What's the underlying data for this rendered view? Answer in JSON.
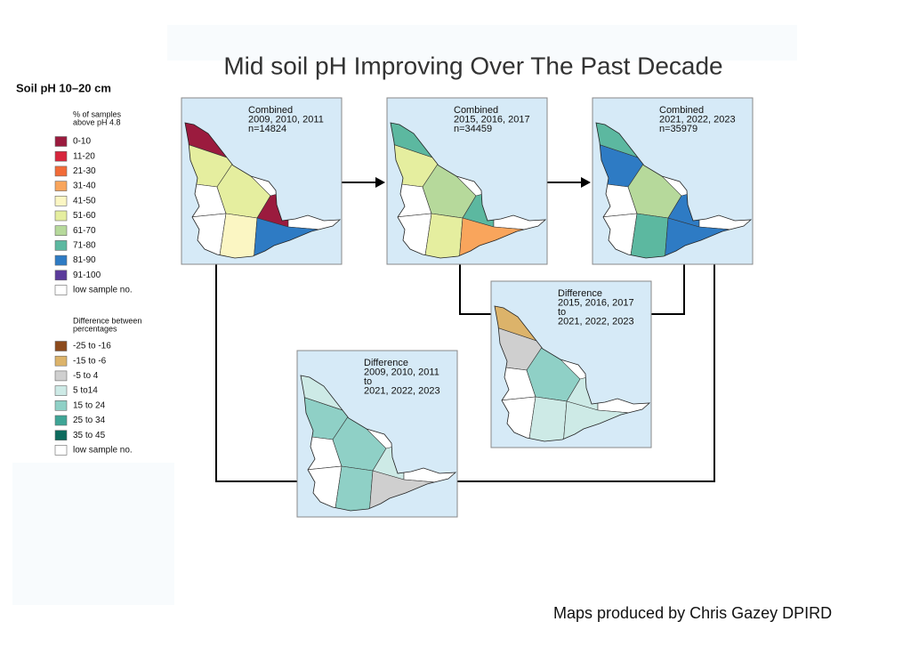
{
  "title": "Mid soil pH Improving Over The Past Decade",
  "legend": {
    "title": "Soil pH 10–20 cm",
    "percent": {
      "heading": [
        "% of samples",
        "above pH 4.8"
      ],
      "items": [
        {
          "label": "0-10",
          "color": "#9b1b3e"
        },
        {
          "label": "11-20",
          "color": "#d7263d"
        },
        {
          "label": "21-30",
          "color": "#f26b38"
        },
        {
          "label": "31-40",
          "color": "#f9a55c"
        },
        {
          "label": "41-50",
          "color": "#fbf6c3"
        },
        {
          "label": "51-60",
          "color": "#e5ee9f"
        },
        {
          "label": "61-70",
          "color": "#b6d99b"
        },
        {
          "label": "71-80",
          "color": "#5cb8a0"
        },
        {
          "label": "81-90",
          "color": "#2e7bc4"
        },
        {
          "label": "91-100",
          "color": "#5b3b9b"
        },
        {
          "label": "low sample no.",
          "color": "#ffffff"
        }
      ]
    },
    "difference": {
      "heading": [
        "Difference between",
        "percentages"
      ],
      "items": [
        {
          "label": "-25 to -16",
          "color": "#8c4a1c"
        },
        {
          "label": "-15 to -6",
          "color": "#dcb36a"
        },
        {
          "label": "-5 to 4",
          "color": "#cfcfcf"
        },
        {
          "label": "5 to14",
          "color": "#cdeae6"
        },
        {
          "label": "15 to 24",
          "color": "#8fd0c6"
        },
        {
          "label": "25 to 34",
          "color": "#3fa596"
        },
        {
          "label": "35 to 45",
          "color": "#0d6a5d"
        },
        {
          "label": "low sample no.",
          "color": "#ffffff"
        }
      ]
    }
  },
  "maps": [
    {
      "label": [
        "Combined",
        "2009, 2010, 2011",
        "n=14824"
      ]
    },
    {
      "label": [
        "Combined",
        "2015, 2016, 2017",
        "n=34459"
      ]
    },
    {
      "label": [
        "Combined",
        "2021, 2022, 2023",
        "n=35979"
      ]
    },
    {
      "label": [
        "Difference",
        "2015, 2016, 2017",
        "to",
        "2021, 2022, 2023"
      ]
    },
    {
      "label": [
        "Difference",
        "2009, 2010, 2011",
        "to",
        "2021, 2022, 2023"
      ]
    }
  ],
  "footer": "Maps produced by Chris Gazey DPIRD"
}
